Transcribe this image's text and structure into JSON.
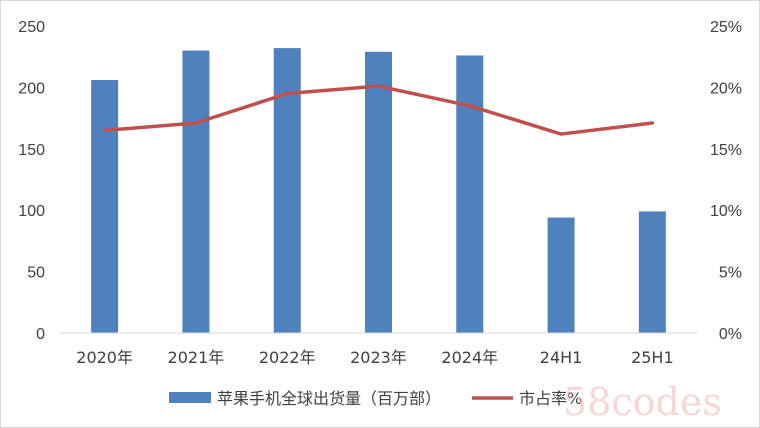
{
  "chart_data": {
    "type": "bar",
    "categories": [
      "2020年",
      "2021年",
      "2022年",
      "2023年",
      "2024年",
      "24H1",
      "25H1"
    ],
    "series": [
      {
        "name": "苹果手机全球出货量（百万部）",
        "type": "bar",
        "axis": "left",
        "color": "#4f81bd",
        "values": [
          206,
          230,
          232,
          229,
          226,
          94,
          99
        ]
      },
      {
        "name": "市占率%",
        "type": "line",
        "axis": "right",
        "color": "#c0504d",
        "values": [
          16.5,
          17.1,
          19.5,
          20.1,
          18.5,
          16.2,
          17.1
        ]
      }
    ],
    "y_left": {
      "min": 0,
      "max": 250,
      "step": 50,
      "ticks": [
        "0",
        "50",
        "100",
        "150",
        "200",
        "250"
      ]
    },
    "y_right": {
      "min": 0,
      "max": 25,
      "step": 5,
      "ticks": [
        "0%",
        "5%",
        "10%",
        "15%",
        "20%",
        "25%"
      ]
    },
    "grid": false,
    "legend_position": "bottom"
  },
  "watermark": "58codes"
}
